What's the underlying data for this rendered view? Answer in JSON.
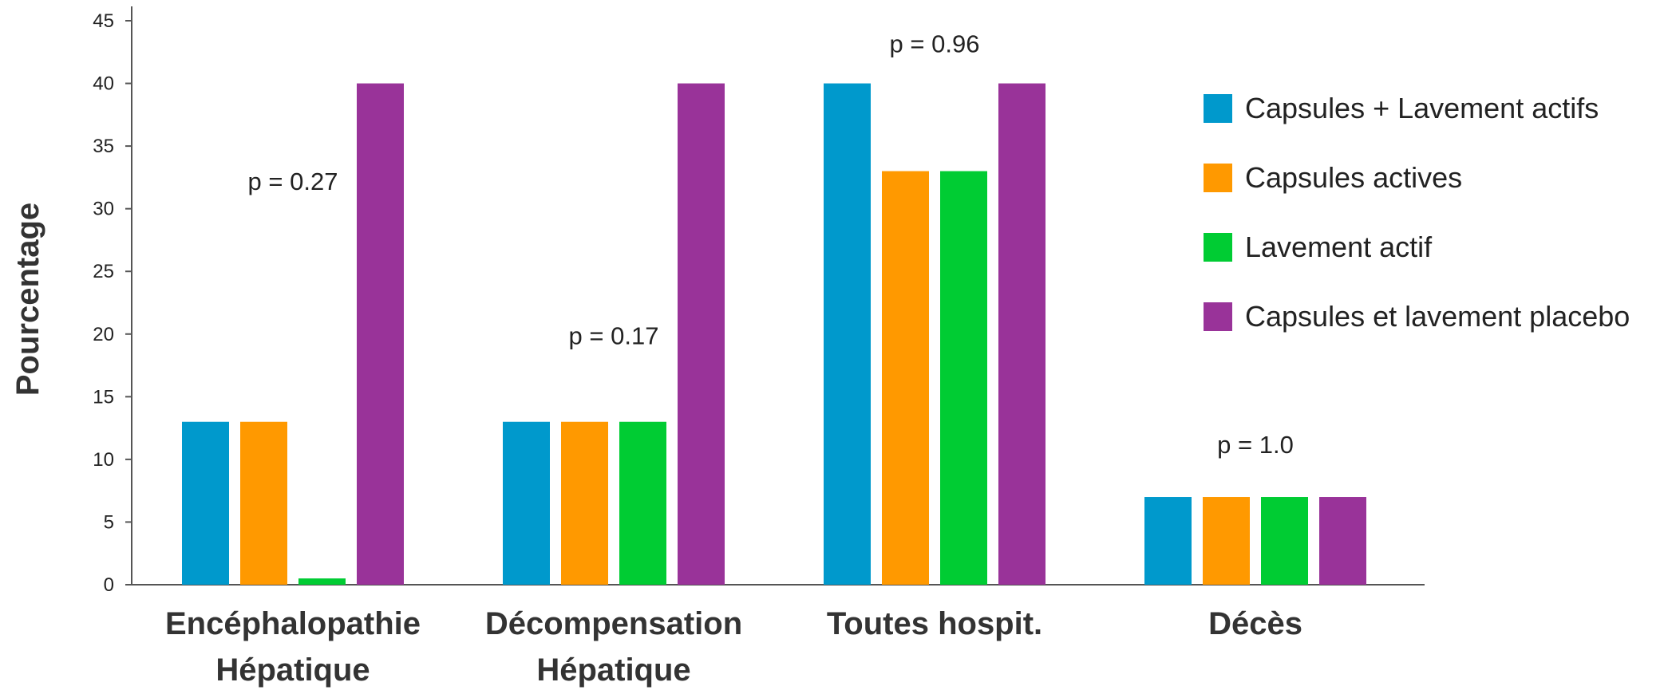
{
  "chart_data": {
    "type": "bar",
    "title": "",
    "xlabel": "",
    "ylabel": "Pourcentage",
    "ylim": [
      0,
      45
    ],
    "yticks": [
      0,
      5,
      10,
      15,
      20,
      25,
      30,
      35,
      40,
      45
    ],
    "grid": false,
    "legend_position": "right",
    "categories": [
      [
        "Encéphalopathie",
        "Hépatique"
      ],
      [
        "Décompensation",
        "Hépatique"
      ],
      [
        "Toutes hospit."
      ],
      [
        "Décès"
      ]
    ],
    "series": [
      {
        "name": "Capsules + Lavement actifs",
        "color": "#0099cc",
        "values": [
          13,
          13,
          40,
          7
        ]
      },
      {
        "name": "Capsules actives",
        "color": "#ff9900",
        "values": [
          13,
          13,
          33,
          7
        ]
      },
      {
        "name": "Lavement actif",
        "color": "#00cc33",
        "values": [
          0.5,
          13,
          33,
          7
        ]
      },
      {
        "name": "Capsules et lavement placebo",
        "color": "#993399",
        "values": [
          40,
          40,
          40,
          7
        ]
      }
    ],
    "annotations": [
      {
        "category_index": 0,
        "text": "p = 0.27",
        "y": 31.5
      },
      {
        "category_index": 1,
        "text": "p = 0.17",
        "y": 19.2
      },
      {
        "category_index": 2,
        "text": "p = 0.96",
        "y": 42.5
      },
      {
        "category_index": 3,
        "text": "p = 1.0",
        "y": 10.5
      }
    ]
  }
}
